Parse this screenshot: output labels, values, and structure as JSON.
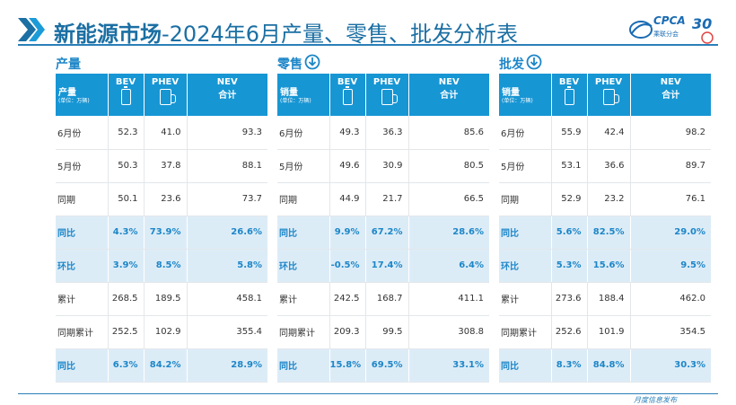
{
  "title": {
    "bold": "新能源市场",
    "rest": "-2024年6月产量、零售、批发分析表"
  },
  "logo": {
    "name": "CPCA",
    "cn": "乘联分会",
    "anniv": "30"
  },
  "colors": {
    "accent": "#1796d4",
    "highlight_bg": "#dcecf7",
    "title": "#1b6fa3"
  },
  "columns": [
    "BEV",
    "PHEV",
    "NEV"
  ],
  "nev_sub": "合计",
  "unit_note": "(单位：万辆)",
  "panels": [
    {
      "head": "产量",
      "has_down_icon": false,
      "corner": "产量",
      "rows": [
        {
          "label": "6月份",
          "v": [
            "52.3",
            "41.0",
            "93.3"
          ],
          "hi": false
        },
        {
          "label": "5月份",
          "v": [
            "50.3",
            "37.8",
            "88.1"
          ],
          "hi": false
        },
        {
          "label": "同期",
          "v": [
            "50.1",
            "23.6",
            "73.7"
          ],
          "hi": false
        },
        {
          "label": "同比",
          "v": [
            "4.3%",
            "73.9%",
            "26.6%"
          ],
          "hi": true
        },
        {
          "label": "环比",
          "v": [
            "3.9%",
            "8.5%",
            "5.8%"
          ],
          "hi": true
        },
        {
          "label": "累计",
          "v": [
            "268.5",
            "189.5",
            "458.1"
          ],
          "hi": false
        },
        {
          "label": "同期累计",
          "v": [
            "252.5",
            "102.9",
            "355.4"
          ],
          "hi": false
        },
        {
          "label": "同比",
          "v": [
            "6.3%",
            "84.2%",
            "28.9%"
          ],
          "hi": true
        }
      ]
    },
    {
      "head": "零售",
      "has_down_icon": true,
      "corner": "销量",
      "rows": [
        {
          "label": "6月份",
          "v": [
            "49.3",
            "36.3",
            "85.6"
          ],
          "hi": false
        },
        {
          "label": "5月份",
          "v": [
            "49.6",
            "30.9",
            "80.5"
          ],
          "hi": false
        },
        {
          "label": "同期",
          "v": [
            "44.9",
            "21.7",
            "66.5"
          ],
          "hi": false
        },
        {
          "label": "同比",
          "v": [
            "9.9%",
            "67.2%",
            "28.6%"
          ],
          "hi": true
        },
        {
          "label": "环比",
          "v": [
            "-0.5%",
            "17.4%",
            "6.4%"
          ],
          "hi": true
        },
        {
          "label": "累计",
          "v": [
            "242.5",
            "168.7",
            "411.1"
          ],
          "hi": false
        },
        {
          "label": "同期累计",
          "v": [
            "209.3",
            "99.5",
            "308.8"
          ],
          "hi": false
        },
        {
          "label": "同比",
          "v": [
            "15.8%",
            "69.5%",
            "33.1%"
          ],
          "hi": true
        }
      ]
    },
    {
      "head": "批发",
      "has_down_icon": true,
      "corner": "销量",
      "rows": [
        {
          "label": "6月份",
          "v": [
            "55.9",
            "42.4",
            "98.2"
          ],
          "hi": false
        },
        {
          "label": "5月份",
          "v": [
            "53.1",
            "36.6",
            "89.7"
          ],
          "hi": false
        },
        {
          "label": "同期",
          "v": [
            "52.9",
            "23.2",
            "76.1"
          ],
          "hi": false
        },
        {
          "label": "同比",
          "v": [
            "5.6%",
            "82.5%",
            "29.0%"
          ],
          "hi": true
        },
        {
          "label": "环比",
          "v": [
            "5.3%",
            "15.6%",
            "9.5%"
          ],
          "hi": true
        },
        {
          "label": "累计",
          "v": [
            "273.6",
            "188.4",
            "462.0"
          ],
          "hi": false
        },
        {
          "label": "同期累计",
          "v": [
            "252.6",
            "101.9",
            "354.5"
          ],
          "hi": false
        },
        {
          "label": "同比",
          "v": [
            "8.3%",
            "84.8%",
            "30.3%"
          ],
          "hi": true
        }
      ]
    }
  ],
  "footer": "月度信息发布"
}
